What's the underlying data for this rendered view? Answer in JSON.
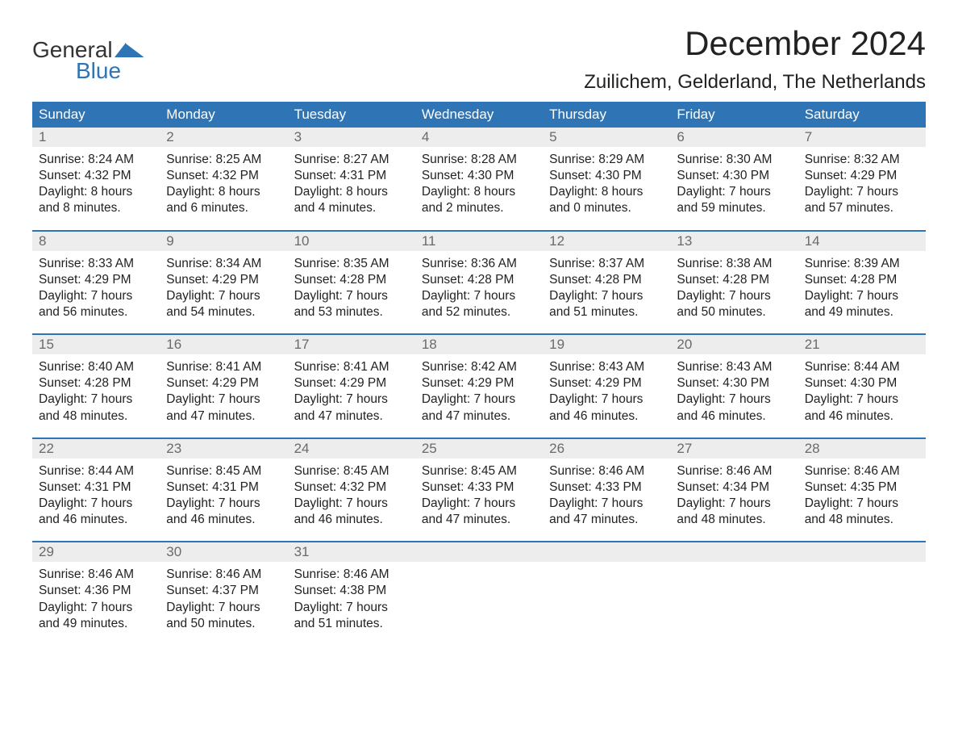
{
  "logo": {
    "top": "General",
    "bottom": "Blue"
  },
  "title": "December 2024",
  "location": "Zuilichem, Gelderland, The Netherlands",
  "weekdays": [
    "Sunday",
    "Monday",
    "Tuesday",
    "Wednesday",
    "Thursday",
    "Friday",
    "Saturday"
  ],
  "colors": {
    "header_bg": "#2f75b5",
    "header_text": "#ffffff",
    "daynum_bg": "#ededed",
    "daynum_text": "#6a6a6a",
    "border": "#2f75b5",
    "body_text": "#222222",
    "background": "#ffffff"
  },
  "fonts": {
    "title_size": 42,
    "location_size": 24,
    "weekday_size": 17,
    "cell_size": 15.5
  },
  "weeks": [
    {
      "days": [
        {
          "num": "1",
          "sunrise": "Sunrise: 8:24 AM",
          "sunset": "Sunset: 4:32 PM",
          "day1": "Daylight: 8 hours",
          "day2": "and 8 minutes."
        },
        {
          "num": "2",
          "sunrise": "Sunrise: 8:25 AM",
          "sunset": "Sunset: 4:32 PM",
          "day1": "Daylight: 8 hours",
          "day2": "and 6 minutes."
        },
        {
          "num": "3",
          "sunrise": "Sunrise: 8:27 AM",
          "sunset": "Sunset: 4:31 PM",
          "day1": "Daylight: 8 hours",
          "day2": "and 4 minutes."
        },
        {
          "num": "4",
          "sunrise": "Sunrise: 8:28 AM",
          "sunset": "Sunset: 4:30 PM",
          "day1": "Daylight: 8 hours",
          "day2": "and 2 minutes."
        },
        {
          "num": "5",
          "sunrise": "Sunrise: 8:29 AM",
          "sunset": "Sunset: 4:30 PM",
          "day1": "Daylight: 8 hours",
          "day2": "and 0 minutes."
        },
        {
          "num": "6",
          "sunrise": "Sunrise: 8:30 AM",
          "sunset": "Sunset: 4:30 PM",
          "day1": "Daylight: 7 hours",
          "day2": "and 59 minutes."
        },
        {
          "num": "7",
          "sunrise": "Sunrise: 8:32 AM",
          "sunset": "Sunset: 4:29 PM",
          "day1": "Daylight: 7 hours",
          "day2": "and 57 minutes."
        }
      ]
    },
    {
      "days": [
        {
          "num": "8",
          "sunrise": "Sunrise: 8:33 AM",
          "sunset": "Sunset: 4:29 PM",
          "day1": "Daylight: 7 hours",
          "day2": "and 56 minutes."
        },
        {
          "num": "9",
          "sunrise": "Sunrise: 8:34 AM",
          "sunset": "Sunset: 4:29 PM",
          "day1": "Daylight: 7 hours",
          "day2": "and 54 minutes."
        },
        {
          "num": "10",
          "sunrise": "Sunrise: 8:35 AM",
          "sunset": "Sunset: 4:28 PM",
          "day1": "Daylight: 7 hours",
          "day2": "and 53 minutes."
        },
        {
          "num": "11",
          "sunrise": "Sunrise: 8:36 AM",
          "sunset": "Sunset: 4:28 PM",
          "day1": "Daylight: 7 hours",
          "day2": "and 52 minutes."
        },
        {
          "num": "12",
          "sunrise": "Sunrise: 8:37 AM",
          "sunset": "Sunset: 4:28 PM",
          "day1": "Daylight: 7 hours",
          "day2": "and 51 minutes."
        },
        {
          "num": "13",
          "sunrise": "Sunrise: 8:38 AM",
          "sunset": "Sunset: 4:28 PM",
          "day1": "Daylight: 7 hours",
          "day2": "and 50 minutes."
        },
        {
          "num": "14",
          "sunrise": "Sunrise: 8:39 AM",
          "sunset": "Sunset: 4:28 PM",
          "day1": "Daylight: 7 hours",
          "day2": "and 49 minutes."
        }
      ]
    },
    {
      "days": [
        {
          "num": "15",
          "sunrise": "Sunrise: 8:40 AM",
          "sunset": "Sunset: 4:28 PM",
          "day1": "Daylight: 7 hours",
          "day2": "and 48 minutes."
        },
        {
          "num": "16",
          "sunrise": "Sunrise: 8:41 AM",
          "sunset": "Sunset: 4:29 PM",
          "day1": "Daylight: 7 hours",
          "day2": "and 47 minutes."
        },
        {
          "num": "17",
          "sunrise": "Sunrise: 8:41 AM",
          "sunset": "Sunset: 4:29 PM",
          "day1": "Daylight: 7 hours",
          "day2": "and 47 minutes."
        },
        {
          "num": "18",
          "sunrise": "Sunrise: 8:42 AM",
          "sunset": "Sunset: 4:29 PM",
          "day1": "Daylight: 7 hours",
          "day2": "and 47 minutes."
        },
        {
          "num": "19",
          "sunrise": "Sunrise: 8:43 AM",
          "sunset": "Sunset: 4:29 PM",
          "day1": "Daylight: 7 hours",
          "day2": "and 46 minutes."
        },
        {
          "num": "20",
          "sunrise": "Sunrise: 8:43 AM",
          "sunset": "Sunset: 4:30 PM",
          "day1": "Daylight: 7 hours",
          "day2": "and 46 minutes."
        },
        {
          "num": "21",
          "sunrise": "Sunrise: 8:44 AM",
          "sunset": "Sunset: 4:30 PM",
          "day1": "Daylight: 7 hours",
          "day2": "and 46 minutes."
        }
      ]
    },
    {
      "days": [
        {
          "num": "22",
          "sunrise": "Sunrise: 8:44 AM",
          "sunset": "Sunset: 4:31 PM",
          "day1": "Daylight: 7 hours",
          "day2": "and 46 minutes."
        },
        {
          "num": "23",
          "sunrise": "Sunrise: 8:45 AM",
          "sunset": "Sunset: 4:31 PM",
          "day1": "Daylight: 7 hours",
          "day2": "and 46 minutes."
        },
        {
          "num": "24",
          "sunrise": "Sunrise: 8:45 AM",
          "sunset": "Sunset: 4:32 PM",
          "day1": "Daylight: 7 hours",
          "day2": "and 46 minutes."
        },
        {
          "num": "25",
          "sunrise": "Sunrise: 8:45 AM",
          "sunset": "Sunset: 4:33 PM",
          "day1": "Daylight: 7 hours",
          "day2": "and 47 minutes."
        },
        {
          "num": "26",
          "sunrise": "Sunrise: 8:46 AM",
          "sunset": "Sunset: 4:33 PM",
          "day1": "Daylight: 7 hours",
          "day2": "and 47 minutes."
        },
        {
          "num": "27",
          "sunrise": "Sunrise: 8:46 AM",
          "sunset": "Sunset: 4:34 PM",
          "day1": "Daylight: 7 hours",
          "day2": "and 48 minutes."
        },
        {
          "num": "28",
          "sunrise": "Sunrise: 8:46 AM",
          "sunset": "Sunset: 4:35 PM",
          "day1": "Daylight: 7 hours",
          "day2": "and 48 minutes."
        }
      ]
    },
    {
      "days": [
        {
          "num": "29",
          "sunrise": "Sunrise: 8:46 AM",
          "sunset": "Sunset: 4:36 PM",
          "day1": "Daylight: 7 hours",
          "day2": "and 49 minutes."
        },
        {
          "num": "30",
          "sunrise": "Sunrise: 8:46 AM",
          "sunset": "Sunset: 4:37 PM",
          "day1": "Daylight: 7 hours",
          "day2": "and 50 minutes."
        },
        {
          "num": "31",
          "sunrise": "Sunrise: 8:46 AM",
          "sunset": "Sunset: 4:38 PM",
          "day1": "Daylight: 7 hours",
          "day2": "and 51 minutes."
        },
        {
          "num": "",
          "sunrise": "",
          "sunset": "",
          "day1": "",
          "day2": ""
        },
        {
          "num": "",
          "sunrise": "",
          "sunset": "",
          "day1": "",
          "day2": ""
        },
        {
          "num": "",
          "sunrise": "",
          "sunset": "",
          "day1": "",
          "day2": ""
        },
        {
          "num": "",
          "sunrise": "",
          "sunset": "",
          "day1": "",
          "day2": ""
        }
      ]
    }
  ]
}
